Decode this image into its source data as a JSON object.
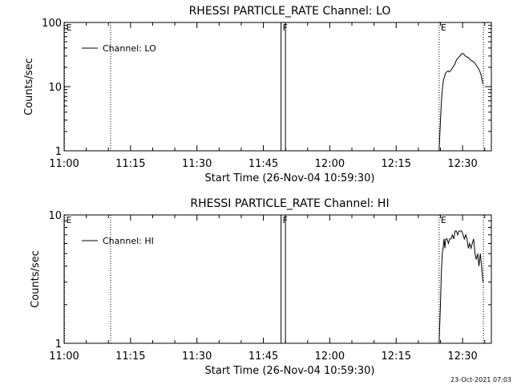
{
  "chart_data": [
    {
      "type": "line",
      "title": "RHESSI PARTICLE_RATE Channel: LO",
      "xlabel": "Start Time (26-Nov-04 10:59:30)",
      "ylabel": "Counts/sec",
      "yscale": "log",
      "ylim": [
        1,
        100
      ],
      "xlim": [
        0,
        96.5
      ],
      "x_units": "minutes after 11:00",
      "xticks": [
        {
          "v": 0,
          "label": "11:00"
        },
        {
          "v": 15,
          "label": "11:15"
        },
        {
          "v": 30,
          "label": "11:30"
        },
        {
          "v": 45,
          "label": "11:45"
        },
        {
          "v": 60,
          "label": "12:00"
        },
        {
          "v": 75,
          "label": "12:15"
        },
        {
          "v": 90,
          "label": "12:30"
        }
      ],
      "yticks": [
        {
          "v": 1,
          "label": "1"
        },
        {
          "v": 10,
          "label": "10"
        },
        {
          "v": 100,
          "label": "100"
        }
      ],
      "legend": {
        "label": "Channel: LO",
        "placement": "top-left"
      },
      "markers": [
        {
          "x": 0.1,
          "label": "E",
          "style": "dotted"
        },
        {
          "x": 10.5,
          "label": "",
          "style": "dotted"
        },
        {
          "x": 49.0,
          "label": "F",
          "style": "solid"
        },
        {
          "x": 50.0,
          "label": "",
          "style": "solid"
        },
        {
          "x": 84.7,
          "label": "E",
          "style": "dotted"
        },
        {
          "x": 94.7,
          "label": "",
          "style": "dotted"
        }
      ],
      "series": [
        {
          "name": "Channel: LO",
          "x": [
            84.7,
            84.9,
            85.1,
            85.3,
            85.5,
            85.7,
            85.9,
            86.1,
            86.4,
            86.7,
            87.0,
            87.4,
            87.8,
            88.2,
            88.6,
            89.0,
            89.4,
            89.7,
            90.0,
            90.3,
            90.6,
            91.0,
            91.4,
            91.8,
            92.2,
            92.6,
            93.0,
            93.4,
            93.8,
            94.2,
            94.6
          ],
          "y": [
            1.0,
            2.0,
            4.0,
            7.0,
            10.0,
            13.0,
            14.0,
            16.0,
            17.0,
            17.5,
            17.0,
            18.0,
            20.0,
            22.0,
            26.0,
            28.0,
            30.0,
            32.0,
            33.0,
            32.0,
            30.0,
            29.0,
            28.0,
            26.0,
            25.0,
            24.0,
            22.0,
            20.0,
            18.0,
            15.0,
            11.0
          ]
        }
      ]
    },
    {
      "type": "line",
      "title": "RHESSI PARTICLE_RATE Channel: HI",
      "xlabel": "Start Time (26-Nov-04 10:59:30)",
      "ylabel": "Counts/sec",
      "yscale": "log",
      "ylim": [
        1,
        10
      ],
      "xlim": [
        0,
        96.5
      ],
      "x_units": "minutes after 11:00",
      "xticks": [
        {
          "v": 0,
          "label": "11:00"
        },
        {
          "v": 15,
          "label": "11:15"
        },
        {
          "v": 30,
          "label": "11:30"
        },
        {
          "v": 45,
          "label": "11:45"
        },
        {
          "v": 60,
          "label": "12:00"
        },
        {
          "v": 75,
          "label": "12:15"
        },
        {
          "v": 90,
          "label": "12:30"
        }
      ],
      "yticks": [
        {
          "v": 1,
          "label": "1"
        },
        {
          "v": 10,
          "label": "10"
        }
      ],
      "legend": {
        "label": "Channel: HI",
        "placement": "top-left"
      },
      "markers": [
        {
          "x": 0.1,
          "label": "E",
          "style": "dotted"
        },
        {
          "x": 10.5,
          "label": "",
          "style": "dotted"
        },
        {
          "x": 49.0,
          "label": "F",
          "style": "solid"
        },
        {
          "x": 50.0,
          "label": "",
          "style": "solid"
        },
        {
          "x": 84.7,
          "label": "E",
          "style": "dotted"
        },
        {
          "x": 94.7,
          "label": "",
          "style": "dotted"
        }
      ],
      "series": [
        {
          "name": "Channel: HI",
          "x": [
            84.7,
            85.0,
            85.2,
            85.4,
            85.6,
            85.8,
            86.0,
            86.2,
            86.5,
            86.8,
            87.1,
            87.4,
            87.7,
            88.0,
            88.3,
            88.6,
            88.9,
            89.2,
            89.5,
            89.8,
            90.1,
            90.4,
            90.7,
            91.0,
            91.3,
            91.6,
            91.9,
            92.2,
            92.5,
            92.8,
            93.1,
            93.4,
            93.7,
            94.0,
            94.3,
            94.6
          ],
          "y": [
            1.0,
            2.0,
            3.5,
            5.0,
            5.5,
            6.5,
            5.5,
            6.5,
            6.5,
            6.0,
            6.5,
            6.5,
            7.0,
            6.5,
            7.5,
            7.5,
            7.0,
            7.5,
            7.5,
            7.5,
            7.0,
            6.5,
            7.0,
            6.5,
            5.5,
            6.0,
            5.5,
            6.0,
            6.5,
            5.0,
            4.5,
            5.0,
            4.0,
            5.0,
            4.0,
            3.0
          ]
        }
      ]
    }
  ],
  "footer": {
    "timestamp": "23-Oct-2021 07:03"
  }
}
